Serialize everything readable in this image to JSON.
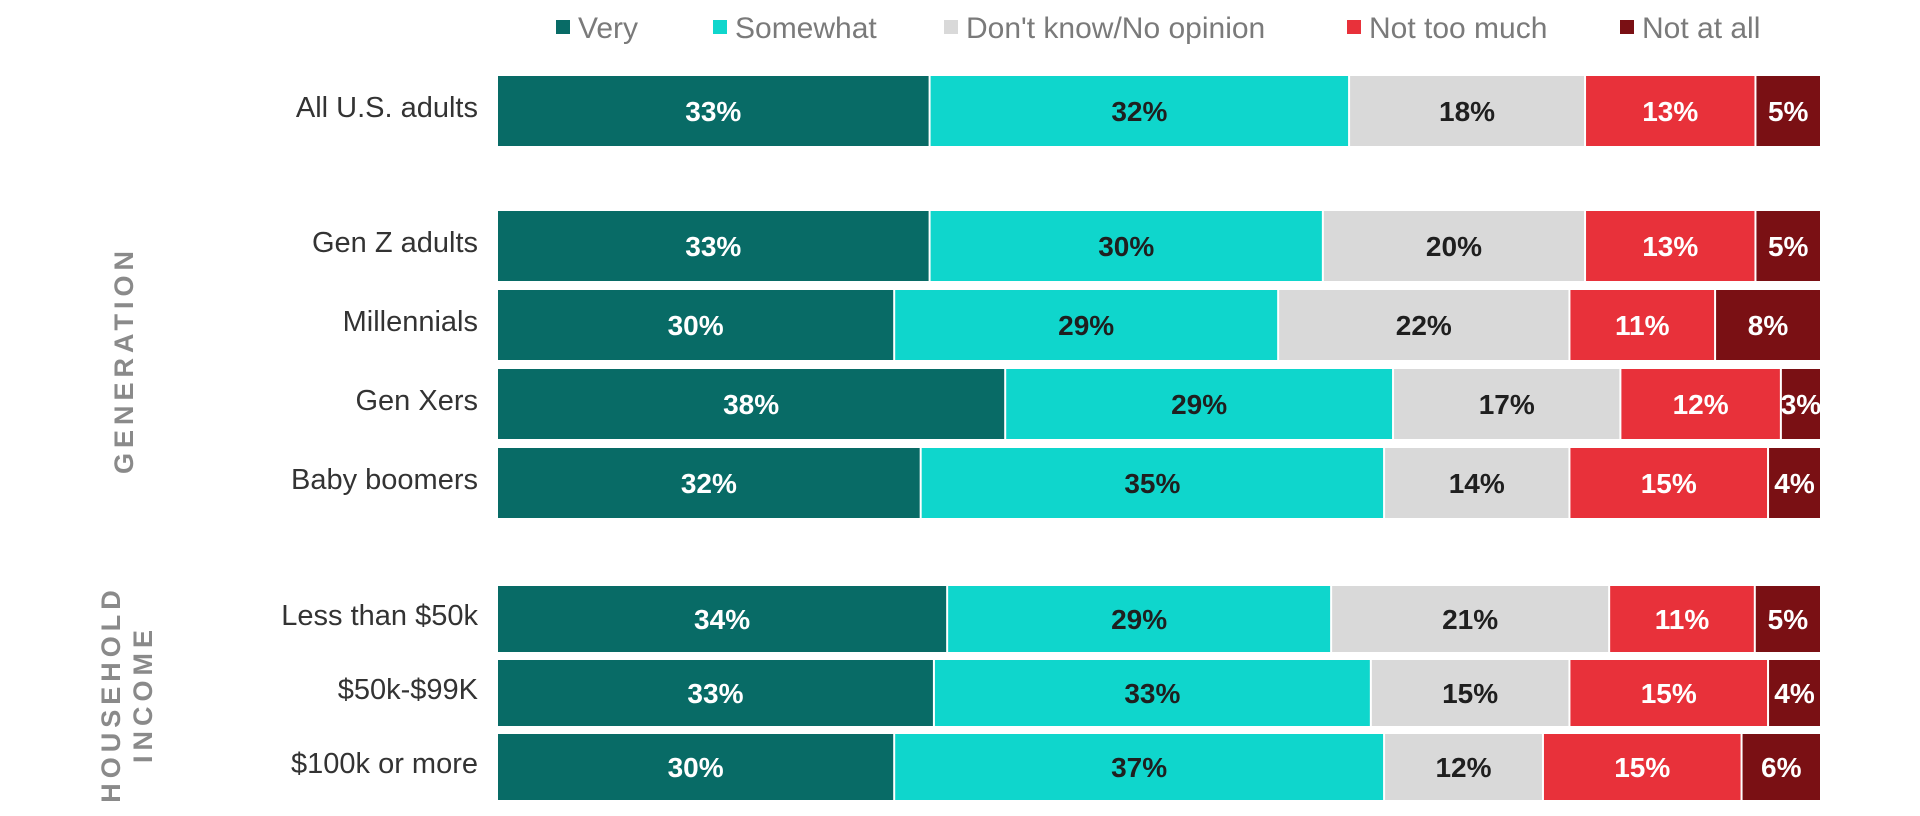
{
  "chart_data": {
    "type": "bar",
    "orientation": "horizontal",
    "stacked": true,
    "legend_position": "top",
    "series": [
      {
        "name": "Very",
        "color": "#086b66"
      },
      {
        "name": "Somewhat",
        "color": "#0fd6cc"
      },
      {
        "name": "Don't know/No opinion",
        "color": "#d9d9d9"
      },
      {
        "name": "Not too much",
        "color": "#e8313a"
      },
      {
        "name": "Not at all",
        "color": "#7a1014"
      }
    ],
    "groups": [
      {
        "label": "",
        "rows": [
          {
            "label": "All U.S. adults",
            "values": [
              33,
              32,
              18,
              13,
              5
            ]
          }
        ]
      },
      {
        "label": "GENERATION",
        "rows": [
          {
            "label": "Gen Z adults",
            "values": [
              33,
              30,
              20,
              13,
              5
            ]
          },
          {
            "label": "Millennials",
            "values": [
              30,
              29,
              22,
              11,
              8
            ]
          },
          {
            "label": "Gen Xers",
            "values": [
              38,
              29,
              17,
              12,
              3
            ]
          },
          {
            "label": "Baby boomers",
            "values": [
              32,
              35,
              14,
              15,
              4
            ]
          }
        ]
      },
      {
        "label": "HOUSEHOLD INCOME",
        "label_lines": [
          "HOUSEHOLD",
          "INCOME"
        ],
        "rows": [
          {
            "label": "Less than $50k",
            "values": [
              34,
              29,
              21,
              11,
              5
            ]
          },
          {
            "label": "$50k-$99K",
            "values": [
              33,
              33,
              15,
              15,
              4
            ]
          },
          {
            "label": "$100k or more",
            "values": [
              30,
              37,
              12,
              15,
              6
            ]
          }
        ]
      }
    ],
    "value_suffix": "%",
    "label_colors": [
      "#ffffff",
      "#1f1f1f",
      "#1f1f1f",
      "#ffffff",
      "#ffffff"
    ]
  }
}
